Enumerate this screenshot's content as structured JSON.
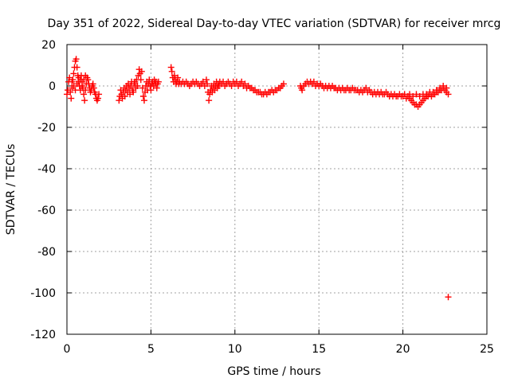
{
  "chart_data": {
    "type": "scatter",
    "title": "Day 351 of 2022, Sidereal Day-to-day VTEC variation (SDTVAR) for receiver mrcg",
    "xlabel": "GPS time / hours",
    "ylabel": "SDTVAR / TECUs",
    "xlim": [
      0,
      25
    ],
    "ylim": [
      -120,
      20
    ],
    "xticks": [
      0,
      5,
      10,
      15,
      20,
      25
    ],
    "yticks": [
      20,
      0,
      -20,
      -40,
      -60,
      -80,
      -100,
      -120
    ],
    "xtick_labels": [
      "0",
      "5",
      "10",
      "15",
      "20",
      "25"
    ],
    "ytick_labels": [
      "20",
      "0",
      "-20",
      "-40",
      "-60",
      "-80",
      "-100",
      "-120"
    ],
    "grid": true,
    "marker": "plus",
    "color": "#ff0000",
    "series": [
      {
        "name": "SDTVAR",
        "points": [
          [
            0.0,
            -4
          ],
          [
            0.05,
            -2
          ],
          [
            0.1,
            2
          ],
          [
            0.15,
            4
          ],
          [
            0.2,
            -3
          ],
          [
            0.25,
            -6
          ],
          [
            0.3,
            -1
          ],
          [
            0.35,
            3
          ],
          [
            0.4,
            6
          ],
          [
            0.45,
            9
          ],
          [
            0.5,
            12
          ],
          [
            0.55,
            13
          ],
          [
            0.6,
            9
          ],
          [
            0.65,
            5
          ],
          [
            0.7,
            2
          ],
          [
            0.75,
            0
          ],
          [
            0.8,
            3
          ],
          [
            0.85,
            5
          ],
          [
            0.9,
            2
          ],
          [
            0.95,
            -1
          ],
          [
            1.0,
            -4
          ],
          [
            1.05,
            -7
          ],
          [
            1.1,
            -2
          ],
          [
            1.15,
            1
          ],
          [
            1.2,
            4
          ],
          [
            1.25,
            3
          ],
          [
            1.3,
            1
          ],
          [
            1.35,
            -1
          ],
          [
            1.4,
            -3
          ],
          [
            1.45,
            -2
          ],
          [
            1.5,
            0
          ],
          [
            1.55,
            1
          ],
          [
            1.6,
            -1
          ],
          [
            1.65,
            -3
          ],
          [
            1.7,
            -4
          ],
          [
            1.75,
            -6
          ],
          [
            1.8,
            -7
          ],
          [
            1.85,
            -6
          ],
          [
            1.9,
            -4
          ],
          [
            0.3,
            2
          ],
          [
            0.4,
            0
          ],
          [
            0.5,
            -2
          ],
          [
            0.6,
            1
          ],
          [
            0.7,
            4
          ],
          [
            0.8,
            -2
          ],
          [
            0.9,
            0
          ],
          [
            1.0,
            3
          ],
          [
            1.1,
            5
          ],
          [
            3.1,
            -7
          ],
          [
            3.15,
            -5
          ],
          [
            3.2,
            -2
          ],
          [
            3.25,
            -4
          ],
          [
            3.3,
            -6
          ],
          [
            3.35,
            -3
          ],
          [
            3.4,
            -1
          ],
          [
            3.45,
            -5
          ],
          [
            3.5,
            -2
          ],
          [
            3.55,
            0
          ],
          [
            3.6,
            -3
          ],
          [
            3.65,
            1
          ],
          [
            3.7,
            -1
          ],
          [
            3.75,
            -4
          ],
          [
            3.8,
            0
          ],
          [
            3.85,
            2
          ],
          [
            3.9,
            -2
          ],
          [
            3.95,
            -3
          ],
          [
            4.0,
            1
          ],
          [
            4.05,
            2
          ],
          [
            4.1,
            -1
          ],
          [
            4.15,
            3
          ],
          [
            4.2,
            0
          ],
          [
            4.25,
            5
          ],
          [
            4.3,
            8
          ],
          [
            4.35,
            6
          ],
          [
            4.4,
            3
          ],
          [
            4.45,
            7
          ],
          [
            4.5,
            -1
          ],
          [
            4.55,
            -5
          ],
          [
            4.6,
            -7
          ],
          [
            4.65,
            -3
          ],
          [
            4.7,
            0
          ],
          [
            4.75,
            2
          ],
          [
            4.8,
            -2
          ],
          [
            4.85,
            1
          ],
          [
            4.9,
            3
          ],
          [
            4.95,
            0
          ],
          [
            5.0,
            -2
          ],
          [
            5.05,
            1
          ],
          [
            5.1,
            2
          ],
          [
            5.15,
            0
          ],
          [
            5.2,
            3
          ],
          [
            5.25,
            1
          ],
          [
            5.3,
            2
          ],
          [
            5.35,
            -1
          ],
          [
            5.4,
            1
          ],
          [
            5.45,
            2
          ],
          [
            6.2,
            9
          ],
          [
            6.25,
            7
          ],
          [
            6.3,
            4
          ],
          [
            6.35,
            2
          ],
          [
            6.4,
            5
          ],
          [
            6.45,
            3
          ],
          [
            6.5,
            1
          ],
          [
            6.55,
            2
          ],
          [
            6.6,
            4
          ],
          [
            6.65,
            1
          ],
          [
            6.7,
            2
          ],
          [
            6.8,
            1
          ],
          [
            6.9,
            2
          ],
          [
            7.0,
            1
          ],
          [
            7.1,
            2
          ],
          [
            7.2,
            1
          ],
          [
            7.3,
            0
          ],
          [
            7.4,
            1
          ],
          [
            7.5,
            2
          ],
          [
            7.6,
            1
          ],
          [
            7.7,
            2
          ],
          [
            7.8,
            1
          ],
          [
            7.9,
            0
          ],
          [
            8.0,
            1
          ],
          [
            8.1,
            2
          ],
          [
            8.2,
            0
          ],
          [
            8.3,
            3
          ],
          [
            8.35,
            1
          ],
          [
            8.4,
            -3
          ],
          [
            8.45,
            -7
          ],
          [
            8.5,
            -4
          ],
          [
            8.55,
            -2
          ],
          [
            8.6,
            0
          ],
          [
            8.65,
            -3
          ],
          [
            8.7,
            -1
          ],
          [
            8.75,
            1
          ],
          [
            8.8,
            -2
          ],
          [
            8.85,
            0
          ],
          [
            8.9,
            2
          ],
          [
            8.95,
            -1
          ],
          [
            9.0,
            1
          ],
          [
            9.05,
            0
          ],
          [
            9.1,
            2
          ],
          [
            9.2,
            1
          ],
          [
            9.3,
            2
          ],
          [
            9.4,
            0
          ],
          [
            9.5,
            1
          ],
          [
            9.6,
            2
          ],
          [
            9.7,
            1
          ],
          [
            9.8,
            0
          ],
          [
            9.9,
            2
          ],
          [
            10.0,
            1
          ],
          [
            10.1,
            2
          ],
          [
            10.2,
            0
          ],
          [
            10.3,
            1
          ],
          [
            10.4,
            2
          ],
          [
            10.5,
            0
          ],
          [
            10.6,
            1
          ],
          [
            10.7,
            -1
          ],
          [
            10.8,
            0
          ],
          [
            10.9,
            -1
          ],
          [
            11.0,
            -1
          ],
          [
            11.1,
            -2
          ],
          [
            11.2,
            -2
          ],
          [
            11.3,
            -3
          ],
          [
            11.4,
            -3
          ],
          [
            11.5,
            -3
          ],
          [
            11.6,
            -4
          ],
          [
            11.7,
            -4
          ],
          [
            11.8,
            -3
          ],
          [
            11.9,
            -4
          ],
          [
            12.0,
            -3
          ],
          [
            12.1,
            -3
          ],
          [
            12.2,
            -2
          ],
          [
            12.3,
            -3
          ],
          [
            12.4,
            -2
          ],
          [
            12.5,
            -2
          ],
          [
            12.6,
            -1
          ],
          [
            12.7,
            -1
          ],
          [
            12.8,
            0
          ],
          [
            12.9,
            1
          ],
          [
            13.9,
            0
          ],
          [
            13.95,
            -1
          ],
          [
            14.0,
            -2
          ],
          [
            14.1,
            0
          ],
          [
            14.2,
            1
          ],
          [
            14.3,
            2
          ],
          [
            14.4,
            1
          ],
          [
            14.5,
            2
          ],
          [
            14.6,
            1
          ],
          [
            14.7,
            2
          ],
          [
            14.8,
            0
          ],
          [
            14.9,
            1
          ],
          [
            15.0,
            0
          ],
          [
            15.1,
            1
          ],
          [
            15.2,
            0
          ],
          [
            15.3,
            -1
          ],
          [
            15.4,
            0
          ],
          [
            15.5,
            -1
          ],
          [
            15.6,
            0
          ],
          [
            15.7,
            -1
          ],
          [
            15.8,
            0
          ],
          [
            15.9,
            -1
          ],
          [
            16.0,
            -1
          ],
          [
            16.1,
            -2
          ],
          [
            16.2,
            -1
          ],
          [
            16.3,
            -2
          ],
          [
            16.4,
            -1
          ],
          [
            16.5,
            -2
          ],
          [
            16.6,
            -2
          ],
          [
            16.7,
            -1
          ],
          [
            16.8,
            -2
          ],
          [
            16.9,
            -2
          ],
          [
            17.0,
            -1
          ],
          [
            17.1,
            -2
          ],
          [
            17.2,
            -2
          ],
          [
            17.3,
            -2
          ],
          [
            17.4,
            -3
          ],
          [
            17.5,
            -2
          ],
          [
            17.6,
            -3
          ],
          [
            17.7,
            -2
          ],
          [
            17.8,
            -1
          ],
          [
            17.9,
            -3
          ],
          [
            18.0,
            -2
          ],
          [
            18.1,
            -3
          ],
          [
            18.2,
            -4
          ],
          [
            18.3,
            -3
          ],
          [
            18.4,
            -4
          ],
          [
            18.5,
            -3
          ],
          [
            18.6,
            -4
          ],
          [
            18.7,
            -3
          ],
          [
            18.8,
            -4
          ],
          [
            18.9,
            -4
          ],
          [
            19.0,
            -3
          ],
          [
            19.1,
            -4
          ],
          [
            19.2,
            -5
          ],
          [
            19.3,
            -4
          ],
          [
            19.4,
            -5
          ],
          [
            19.5,
            -4
          ],
          [
            19.6,
            -5
          ],
          [
            19.7,
            -5
          ],
          [
            19.8,
            -4
          ],
          [
            19.9,
            -5
          ],
          [
            20.0,
            -5
          ],
          [
            20.1,
            -4
          ],
          [
            20.2,
            -6
          ],
          [
            20.3,
            -5
          ],
          [
            20.4,
            -6
          ],
          [
            20.5,
            -7
          ],
          [
            20.6,
            -8
          ],
          [
            20.7,
            -9
          ],
          [
            20.8,
            -9
          ],
          [
            20.9,
            -10
          ],
          [
            21.0,
            -9
          ],
          [
            21.1,
            -8
          ],
          [
            21.2,
            -7
          ],
          [
            21.3,
            -6
          ],
          [
            21.4,
            -5
          ],
          [
            21.5,
            -5
          ],
          [
            21.6,
            -4
          ],
          [
            21.7,
            -5
          ],
          [
            21.8,
            -4
          ],
          [
            21.9,
            -4
          ],
          [
            22.0,
            -3
          ],
          [
            22.1,
            -3
          ],
          [
            22.2,
            -2
          ],
          [
            22.3,
            -2
          ],
          [
            22.4,
            -1
          ],
          [
            22.5,
            -2
          ],
          [
            22.6,
            -3
          ],
          [
            22.7,
            -4
          ],
          [
            20.4,
            -4
          ],
          [
            20.6,
            -5
          ],
          [
            20.8,
            -4
          ],
          [
            21.0,
            -5
          ],
          [
            21.2,
            -4
          ],
          [
            21.4,
            -4
          ],
          [
            21.6,
            -3
          ],
          [
            21.8,
            -3
          ],
          [
            22.0,
            -2
          ],
          [
            22.2,
            -1
          ],
          [
            22.4,
            0
          ],
          [
            22.6,
            -1
          ],
          [
            22.7,
            -102
          ]
        ]
      }
    ]
  }
}
